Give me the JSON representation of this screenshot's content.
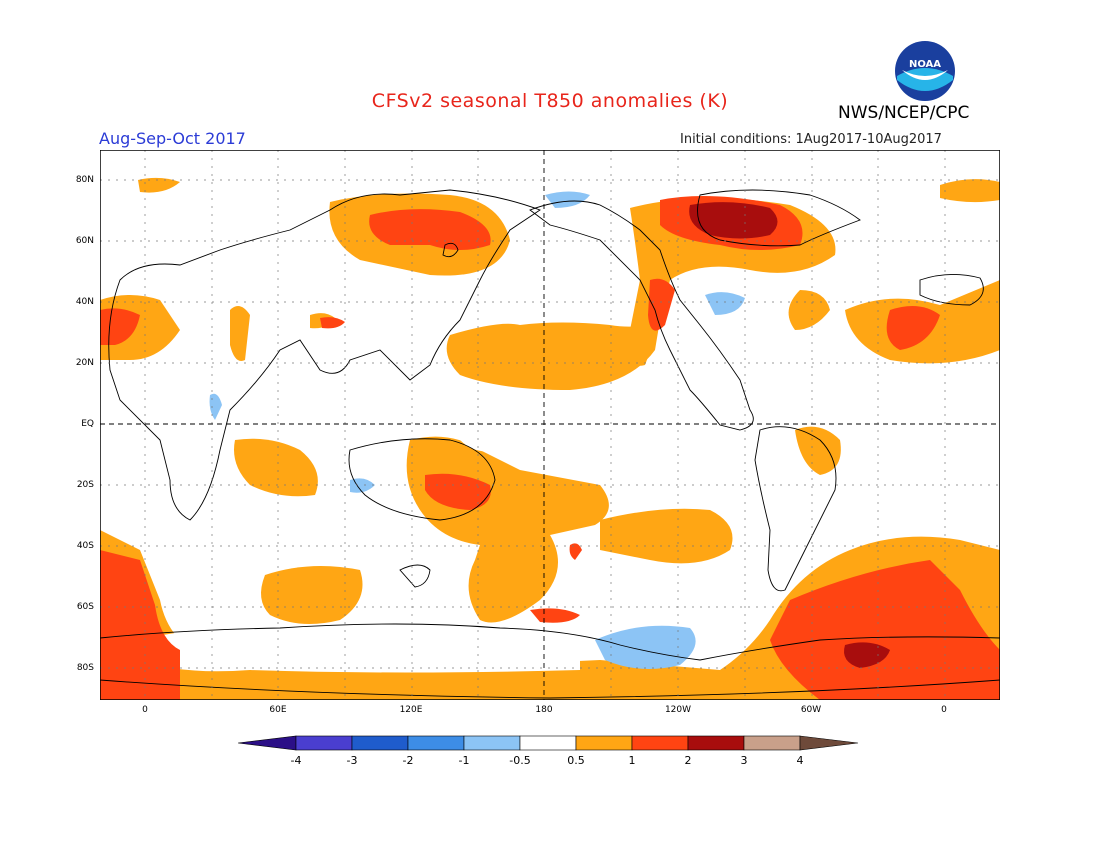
{
  "header": {
    "title": "CFSv2 seasonal T850 anomalies (K)",
    "season": "Aug-Sep-Oct 2017",
    "agency": "NWS/NCEP/CPC",
    "initial_conditions": "Initial conditions: 1Aug2017-10Aug2017",
    "logo_text": "NOAA"
  },
  "axes": {
    "lat_labels": [
      "80N",
      "60N",
      "40N",
      "20N",
      "EQ",
      "20S",
      "40S",
      "60S",
      "80S"
    ],
    "lon_labels": [
      "0",
      "60E",
      "120E",
      "180",
      "120W",
      "60W",
      "0"
    ]
  },
  "legend": {
    "labels": [
      "-4",
      "-3",
      "-2",
      "-1",
      "-0.5",
      "0.5",
      "1",
      "2",
      "3",
      "4"
    ],
    "colors": [
      "#2b0f87",
      "#4a3ecf",
      "#1f5ccc",
      "#3d8de6",
      "#8cc4f5",
      "#ffffff",
      "#ffa614",
      "#ff4412",
      "#a80d0d",
      "#c9a08a",
      "#6e4a3a"
    ]
  }
}
